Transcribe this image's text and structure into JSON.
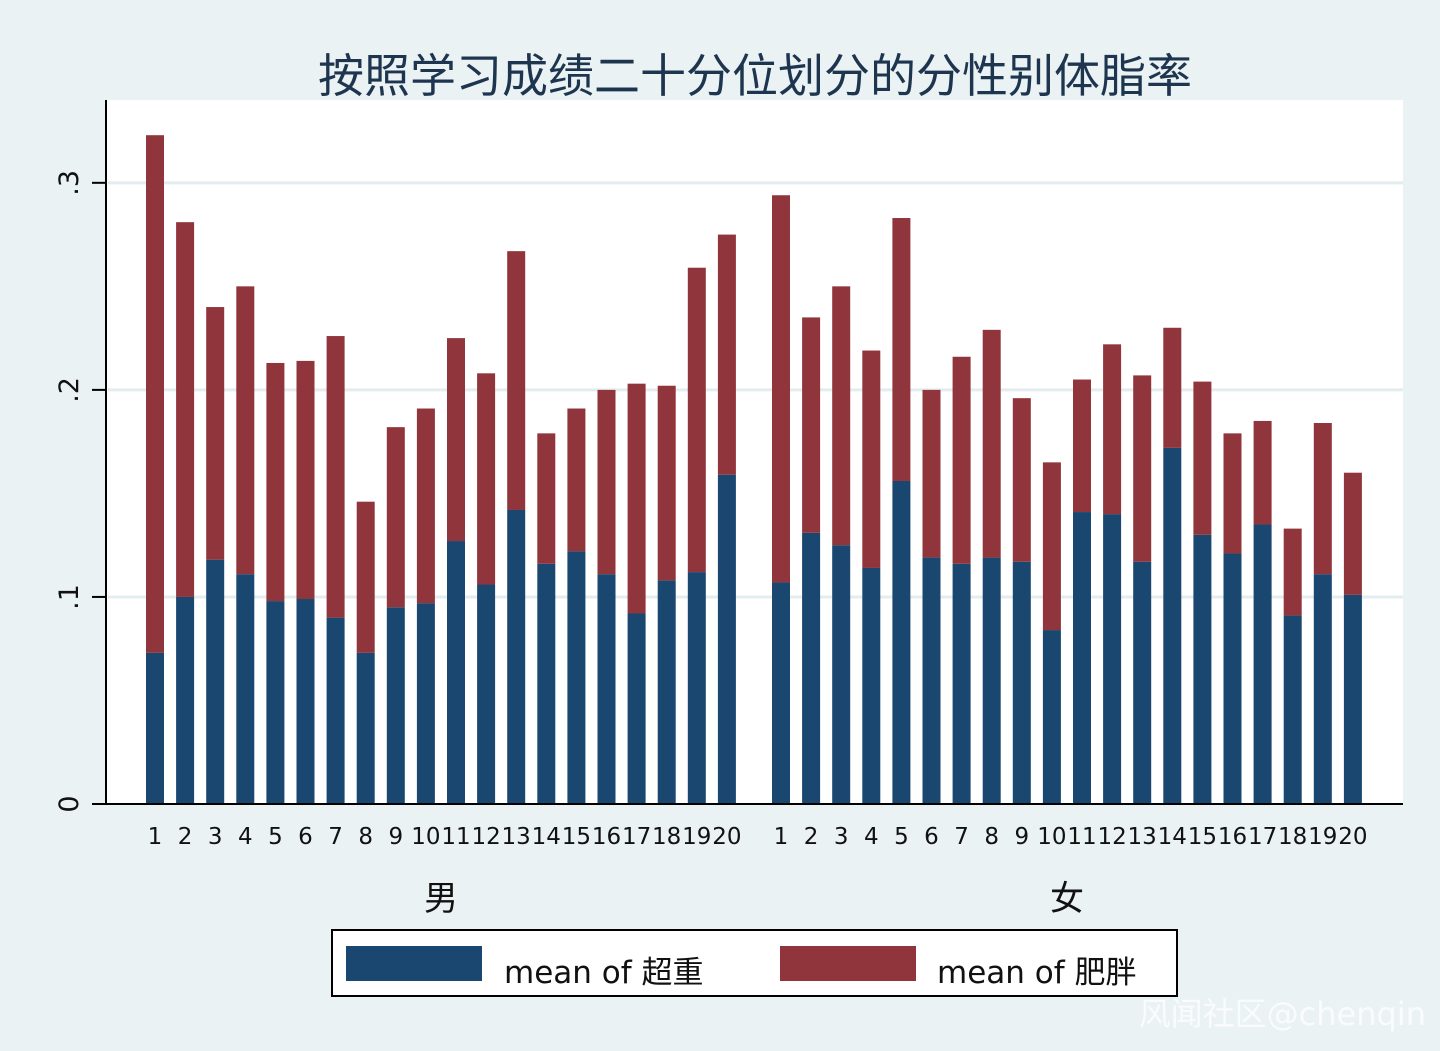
{
  "chart_data": {
    "type": "bar",
    "stacked": true,
    "title": "按照学习成绩二十分位划分的分性别体脂率",
    "ylim": [
      0,
      0.34
    ],
    "yticks": [
      0,
      0.1,
      0.2,
      0.3
    ],
    "ytick_labels": [
      "0",
      ".1",
      ".2",
      ".3"
    ],
    "grid": true,
    "legend_position": "bottom",
    "categories": [
      "1",
      "2",
      "3",
      "4",
      "5",
      "6",
      "7",
      "8",
      "9",
      "10",
      "11",
      "12",
      "13",
      "14",
      "15",
      "16",
      "17",
      "18",
      "19",
      "20"
    ],
    "groups": [
      {
        "label": "男",
        "series": [
          {
            "name": "mean of 超重",
            "color": "#1a476f",
            "values": [
              0.073,
              0.1,
              0.118,
              0.111,
              0.098,
              0.099,
              0.09,
              0.073,
              0.095,
              0.097,
              0.127,
              0.106,
              0.142,
              0.116,
              0.122,
              0.111,
              0.092,
              0.108,
              0.112,
              0.159
            ]
          },
          {
            "name": "mean of 肥胖",
            "color": "#90353b",
            "values": [
              0.25,
              0.181,
              0.122,
              0.139,
              0.115,
              0.115,
              0.136,
              0.073,
              0.087,
              0.094,
              0.098,
              0.102,
              0.125,
              0.063,
              0.069,
              0.089,
              0.111,
              0.094,
              0.147,
              0.116
            ]
          }
        ]
      },
      {
        "label": "女",
        "series": [
          {
            "name": "mean of 超重",
            "color": "#1a476f",
            "values": [
              0.107,
              0.131,
              0.125,
              0.114,
              0.156,
              0.119,
              0.116,
              0.119,
              0.117,
              0.084,
              0.141,
              0.14,
              0.117,
              0.172,
              0.13,
              0.121,
              0.135,
              0.091,
              0.111,
              0.101
            ]
          },
          {
            "name": "mean of 肥胖",
            "color": "#90353b",
            "values": [
              0.187,
              0.104,
              0.125,
              0.105,
              0.127,
              0.081,
              0.1,
              0.11,
              0.079,
              0.081,
              0.064,
              0.082,
              0.09,
              0.058,
              0.074,
              0.058,
              0.05,
              0.042,
              0.073,
              0.059
            ]
          }
        ]
      }
    ],
    "legend": [
      "mean of 超重",
      "mean of 肥胖"
    ],
    "colors": {
      "overweight": "#1a476f",
      "obese": "#90353b",
      "background": "#eaf2f3",
      "plot_bg": "#ffffff"
    }
  },
  "watermark": "风闻社区@chenqin"
}
